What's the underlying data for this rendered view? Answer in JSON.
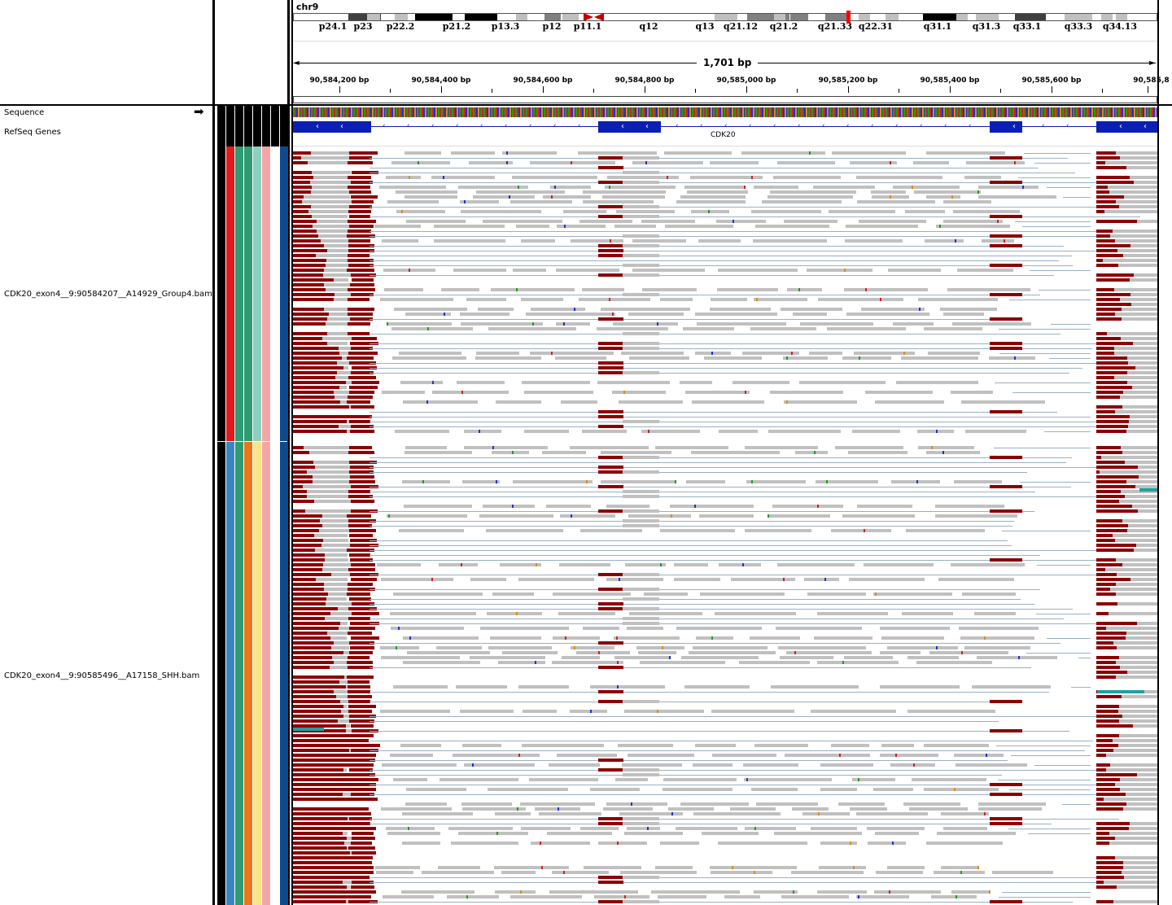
{
  "header": {
    "chromosome": "chr9",
    "span_label": "1,701 bp",
    "arrow_left": "◄",
    "arrow_right": "►"
  },
  "ideogram": {
    "bands": [
      {
        "label": "p24.1",
        "stain": "#ffffff"
      },
      {
        "label": "p23",
        "stain": "#404040"
      },
      {
        "label": "p22.2",
        "stain": "#c0c0c0"
      },
      {
        "label": "p21.2",
        "stain": "#000000"
      },
      {
        "label": "p13.3",
        "stain": "#000000"
      },
      {
        "label": "p12",
        "stain": "#808080"
      },
      {
        "label": "p11.1",
        "stain": "#ffffff"
      },
      {
        "label": "q12",
        "stain": "#ffffff"
      },
      {
        "label": "q13",
        "stain": "#c0c0c0"
      },
      {
        "label": "q21.12",
        "stain": "#808080"
      },
      {
        "label": "q21.2",
        "stain": "#808080"
      },
      {
        "label": "q21.33",
        "stain": "#808080"
      },
      {
        "label": "q22.31",
        "stain": "#c0c0c0"
      },
      {
        "label": "q31.1",
        "stain": "#000000"
      },
      {
        "label": "q31.3",
        "stain": "#c0c0c0"
      },
      {
        "label": "q33.1",
        "stain": "#404040"
      },
      {
        "label": "q33.3",
        "stain": "#c0c0c0"
      },
      {
        "label": "q34.13",
        "stain": "#c0c0c0"
      }
    ],
    "centromere_color": "#c00000",
    "current_region_color": "#ff0000"
  },
  "ruler": {
    "ticks": [
      "90,584,200 bp",
      "90,584,400 bp",
      "90,584,600 bp",
      "90,584,800 bp",
      "90,585,000 bp",
      "90,585,200 bp",
      "90,585,400 bp",
      "90,585,600 bp",
      "90,585,8"
    ]
  },
  "tracks": {
    "sequence_label": "Sequence",
    "sequence_arrow": "➡",
    "refseq_label": "RefSeq Genes",
    "gene_name": "CDK20",
    "bam1_label": "CDK20_exon4__9:90584207__A14929_Group4.bam",
    "bam2_label": "CDK20_exon4__9:90585496__A17158_SHH.bam"
  },
  "colors": {
    "read": "#c0c0c0",
    "soft_clip": "#8b0000",
    "exon": "#0b1fb3",
    "split_line": "#9ab0c4"
  },
  "attributes": {
    "sample1": [
      "#000000",
      "#e31a1c",
      "#2e9b72",
      "#2e9b72",
      "#8ecfbf",
      "#f4a6a6",
      "#ffffff",
      "#0d4a8f"
    ],
    "sample2": [
      "#000000",
      "#3a86c0",
      "#2e9b72",
      "#e8771a",
      "#fbe38a",
      "#f4a6a6",
      "#ffffff",
      "#0d4a8f"
    ]
  }
}
